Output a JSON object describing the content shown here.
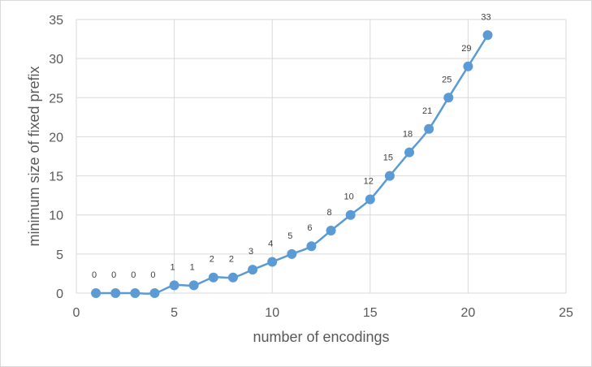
{
  "chart_data": {
    "type": "scatter",
    "title": "",
    "xlabel": "number of encodings",
    "ylabel": "minimum size of fixed prefix",
    "xlim": [
      0,
      25
    ],
    "ylim": [
      0,
      35
    ],
    "xticks": [
      0,
      5,
      10,
      15,
      20,
      25
    ],
    "yticks": [
      0,
      5,
      10,
      15,
      20,
      25,
      30,
      35
    ],
    "grid": true,
    "line": "smooth",
    "series": [
      {
        "x": [
          1,
          2,
          3,
          4,
          5,
          6,
          7,
          8,
          9,
          10,
          11,
          12,
          13,
          14,
          15,
          16,
          17,
          18,
          19,
          20,
          21
        ],
        "values": [
          0,
          0,
          0,
          0,
          1,
          1,
          2,
          2,
          3,
          4,
          5,
          6,
          8,
          10,
          12,
          15,
          18,
          21,
          25,
          29,
          33
        ],
        "labels": [
          "0",
          "0",
          "0",
          "0",
          "1",
          "1",
          "2",
          "2",
          "3",
          "4",
          "5",
          "6",
          "8",
          "10",
          "12",
          "15",
          "18",
          "21",
          "25",
          "29",
          "33"
        ],
        "color": "#5b9bd5"
      }
    ],
    "colors": {
      "grid": "#d9d9d9",
      "axis_text": "#595959",
      "series": "#5b9bd5"
    }
  }
}
